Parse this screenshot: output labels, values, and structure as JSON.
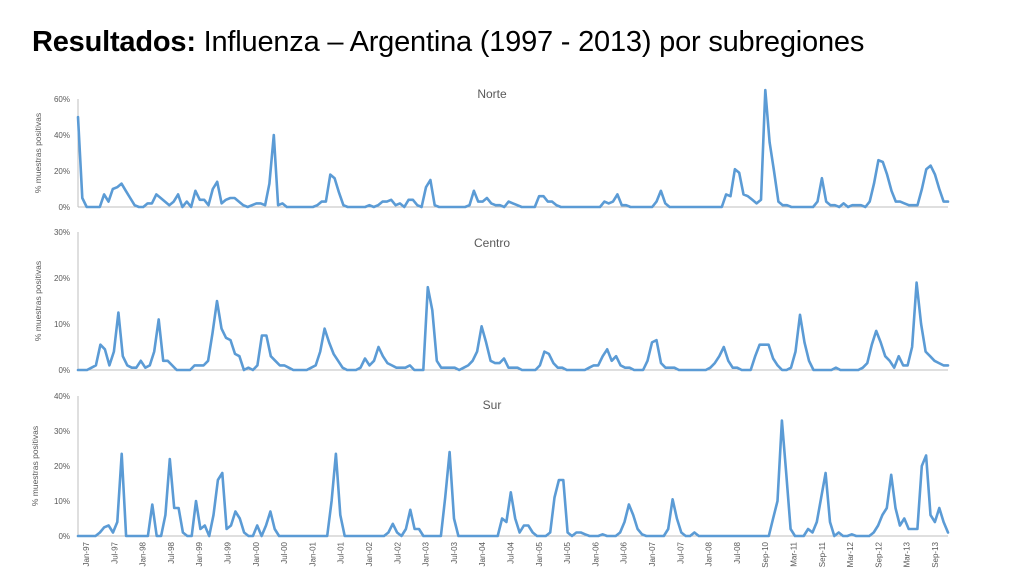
{
  "slide": {
    "title_bold": "Resultados:",
    "title_rest": " Influenza – Argentina (1997 - 2013) por subregiones"
  },
  "theme": {
    "line_color": "#5b9bd5",
    "axis_color": "#bfbfbf",
    "text_color": "#595959"
  },
  "chart_data": [
    {
      "type": "line",
      "title": "Norte",
      "ylabel": "% muestras positivas",
      "ylim": [
        0,
        60
      ],
      "yticks": [
        "0%",
        "20%",
        "40%",
        "60%"
      ],
      "xlabel_show": false,
      "values": [
        50,
        5,
        0,
        0,
        0,
        0,
        7,
        3,
        10,
        11,
        13,
        9,
        5,
        1,
        0,
        0,
        2,
        2,
        7,
        5,
        3,
        1,
        3,
        7,
        0,
        3,
        0,
        9,
        4,
        4,
        1,
        10,
        14,
        2,
        4,
        5,
        5,
        3,
        1,
        0,
        1,
        2,
        2,
        1,
        13,
        40,
        1,
        2,
        0,
        0,
        0,
        0,
        0,
        0,
        0,
        1,
        3,
        3,
        18,
        16,
        8,
        1,
        0,
        0,
        0,
        0,
        0,
        1,
        0,
        1,
        3,
        3,
        4,
        1,
        2,
        0,
        4,
        4,
        1,
        0,
        11,
        15,
        1,
        0,
        0,
        0,
        0,
        0,
        0,
        0,
        1,
        9,
        3,
        3,
        5,
        2,
        1,
        1,
        0,
        3,
        2,
        1,
        0,
        0,
        0,
        0,
        6,
        6,
        3,
        3,
        1,
        0,
        0,
        0,
        0,
        0,
        0,
        0,
        0,
        0,
        0,
        3,
        2,
        3,
        7,
        1,
        1,
        0,
        0,
        0,
        0,
        0,
        0,
        3,
        9,
        2,
        0,
        0,
        0,
        0,
        0,
        0,
        0,
        0,
        0,
        0,
        0,
        0,
        0,
        7,
        6,
        21,
        19,
        7,
        6,
        4,
        2,
        4,
        65,
        36,
        20,
        3,
        1,
        1,
        0,
        0,
        0,
        0,
        0,
        0,
        3,
        16,
        3,
        1,
        1,
        0,
        2,
        0,
        1,
        1,
        1,
        0,
        3,
        13,
        26,
        25,
        18,
        9,
        3,
        3,
        2,
        1,
        1,
        1,
        10,
        21,
        23,
        18,
        10,
        3,
        3
      ],
      "x_labels": []
    },
    {
      "type": "line",
      "title": "Centro",
      "ylabel": "% muestras positivas",
      "ylim": [
        0,
        30
      ],
      "yticks": [
        "0%",
        "10%",
        "20%",
        "30%"
      ],
      "xlabel_show": false,
      "values": [
        0,
        0,
        0,
        0.5,
        1,
        5.5,
        4.5,
        1,
        4,
        12.5,
        3,
        1,
        0.5,
        0.5,
        2,
        0.5,
        1,
        4,
        11,
        2,
        2,
        1,
        0,
        0,
        0,
        0,
        1,
        1,
        1,
        2,
        8,
        15,
        9,
        7,
        6.5,
        3.5,
        3,
        0,
        0.5,
        0,
        1,
        7.5,
        7.5,
        3,
        2,
        1,
        1,
        0.5,
        0,
        0,
        0,
        0,
        0.5,
        1,
        4,
        9,
        6,
        3.5,
        2,
        0.5,
        0,
        0,
        0,
        0.5,
        2.5,
        1,
        2,
        5,
        3,
        1.5,
        1,
        0.5,
        0.5,
        0.5,
        1,
        0,
        0,
        0,
        18,
        13,
        2,
        0.5,
        0.5,
        0.5,
        0.5,
        0,
        0.5,
        1,
        2,
        4,
        9.5,
        6,
        2,
        1.5,
        1.5,
        2.5,
        0.5,
        0.5,
        0.5,
        0,
        0,
        0,
        0,
        1,
        4,
        3.5,
        1.5,
        0.5,
        0.5,
        0,
        0,
        0,
        0,
        0,
        0.5,
        1,
        1,
        3,
        4.5,
        2,
        3,
        1,
        0.5,
        0.5,
        0,
        0,
        0,
        2,
        6,
        6.5,
        1.5,
        0.5,
        0.5,
        0.5,
        0,
        0,
        0,
        0,
        0,
        0,
        0,
        0.5,
        1.5,
        3,
        5,
        2,
        0.5,
        0.5,
        0,
        0,
        0,
        3,
        5.5,
        5.5,
        5.5,
        2.5,
        1,
        0,
        0,
        0.5,
        4,
        12,
        6,
        2,
        0,
        0,
        0,
        0,
        0,
        0.5,
        0,
        0,
        0,
        0,
        0,
        0.5,
        1.5,
        5.5,
        8.5,
        6,
        3,
        2,
        0.5,
        3,
        1,
        1,
        5,
        19,
        10,
        4,
        3,
        2,
        1.5,
        1,
        1
      ],
      "x_labels": []
    },
    {
      "type": "line",
      "title": "Sur",
      "ylabel": "% muestras positivas",
      "ylim": [
        0,
        40
      ],
      "yticks": [
        "0%",
        "10%",
        "20%",
        "30%",
        "40%"
      ],
      "xlabel_show": true,
      "values": [
        0,
        0,
        0,
        0,
        0,
        1,
        2.5,
        3,
        1,
        4,
        23.5,
        0,
        0,
        0,
        0,
        0,
        0,
        9,
        0,
        0,
        6,
        22,
        8,
        8,
        1,
        0,
        0,
        10,
        2,
        3,
        0,
        6,
        16,
        18,
        2,
        3,
        7,
        5,
        1,
        0,
        0,
        3,
        0,
        3,
        7,
        2,
        0,
        0,
        0,
        0,
        0,
        0,
        0,
        0,
        0,
        0,
        0,
        0,
        10,
        23.5,
        6,
        0,
        0,
        0,
        0,
        0,
        0,
        0,
        0,
        0,
        0,
        1,
        3.5,
        1,
        0,
        2,
        7.5,
        2,
        2,
        0,
        0,
        0,
        0,
        0,
        11,
        24,
        5,
        0,
        0,
        0,
        0,
        0,
        0,
        0,
        0,
        0,
        0,
        5,
        4,
        12.5,
        5,
        1,
        3,
        3,
        1,
        0,
        0,
        0,
        1,
        11,
        16,
        16,
        1,
        0,
        1,
        1,
        0.5,
        0,
        0,
        0,
        0.5,
        0,
        0,
        0,
        1,
        4,
        9,
        6,
        2,
        0.5,
        0,
        0,
        0,
        0,
        0,
        2,
        10.5,
        5,
        1,
        0,
        0,
        1,
        0,
        0,
        0,
        0,
        0,
        0,
        0,
        0,
        0,
        0,
        0,
        0,
        0,
        0,
        0,
        0,
        0,
        5,
        10,
        33,
        18,
        2,
        0,
        0,
        0,
        2,
        1,
        4,
        11,
        18,
        4,
        0,
        1,
        0,
        0,
        0.5,
        0,
        0,
        0,
        0,
        1,
        3,
        6,
        8,
        17.5,
        8,
        3,
        5,
        2,
        2,
        2,
        20,
        23,
        6,
        4,
        8,
        4,
        1
      ],
      "x_labels": [
        "Jan-97",
        "Jul-97",
        "Jan-98",
        "Jul-98",
        "Jan-99",
        "Jul-99",
        "Jan-00",
        "Jul-00",
        "Jan-01",
        "Jul-01",
        "Jan-02",
        "Jul-02",
        "Jan-03",
        "Jul-03",
        "Jan-04",
        "Jul-04",
        "Jan-05",
        "Jul-05",
        "Jan-06",
        "Jul-06",
        "Jan-07",
        "Jul-07",
        "Jan-08",
        "Jul-08",
        "Sep-10",
        "Mar-11",
        "Sep-11",
        "Mar-12",
        "Sep-12",
        "Mar-13",
        "Sep-13"
      ]
    }
  ]
}
